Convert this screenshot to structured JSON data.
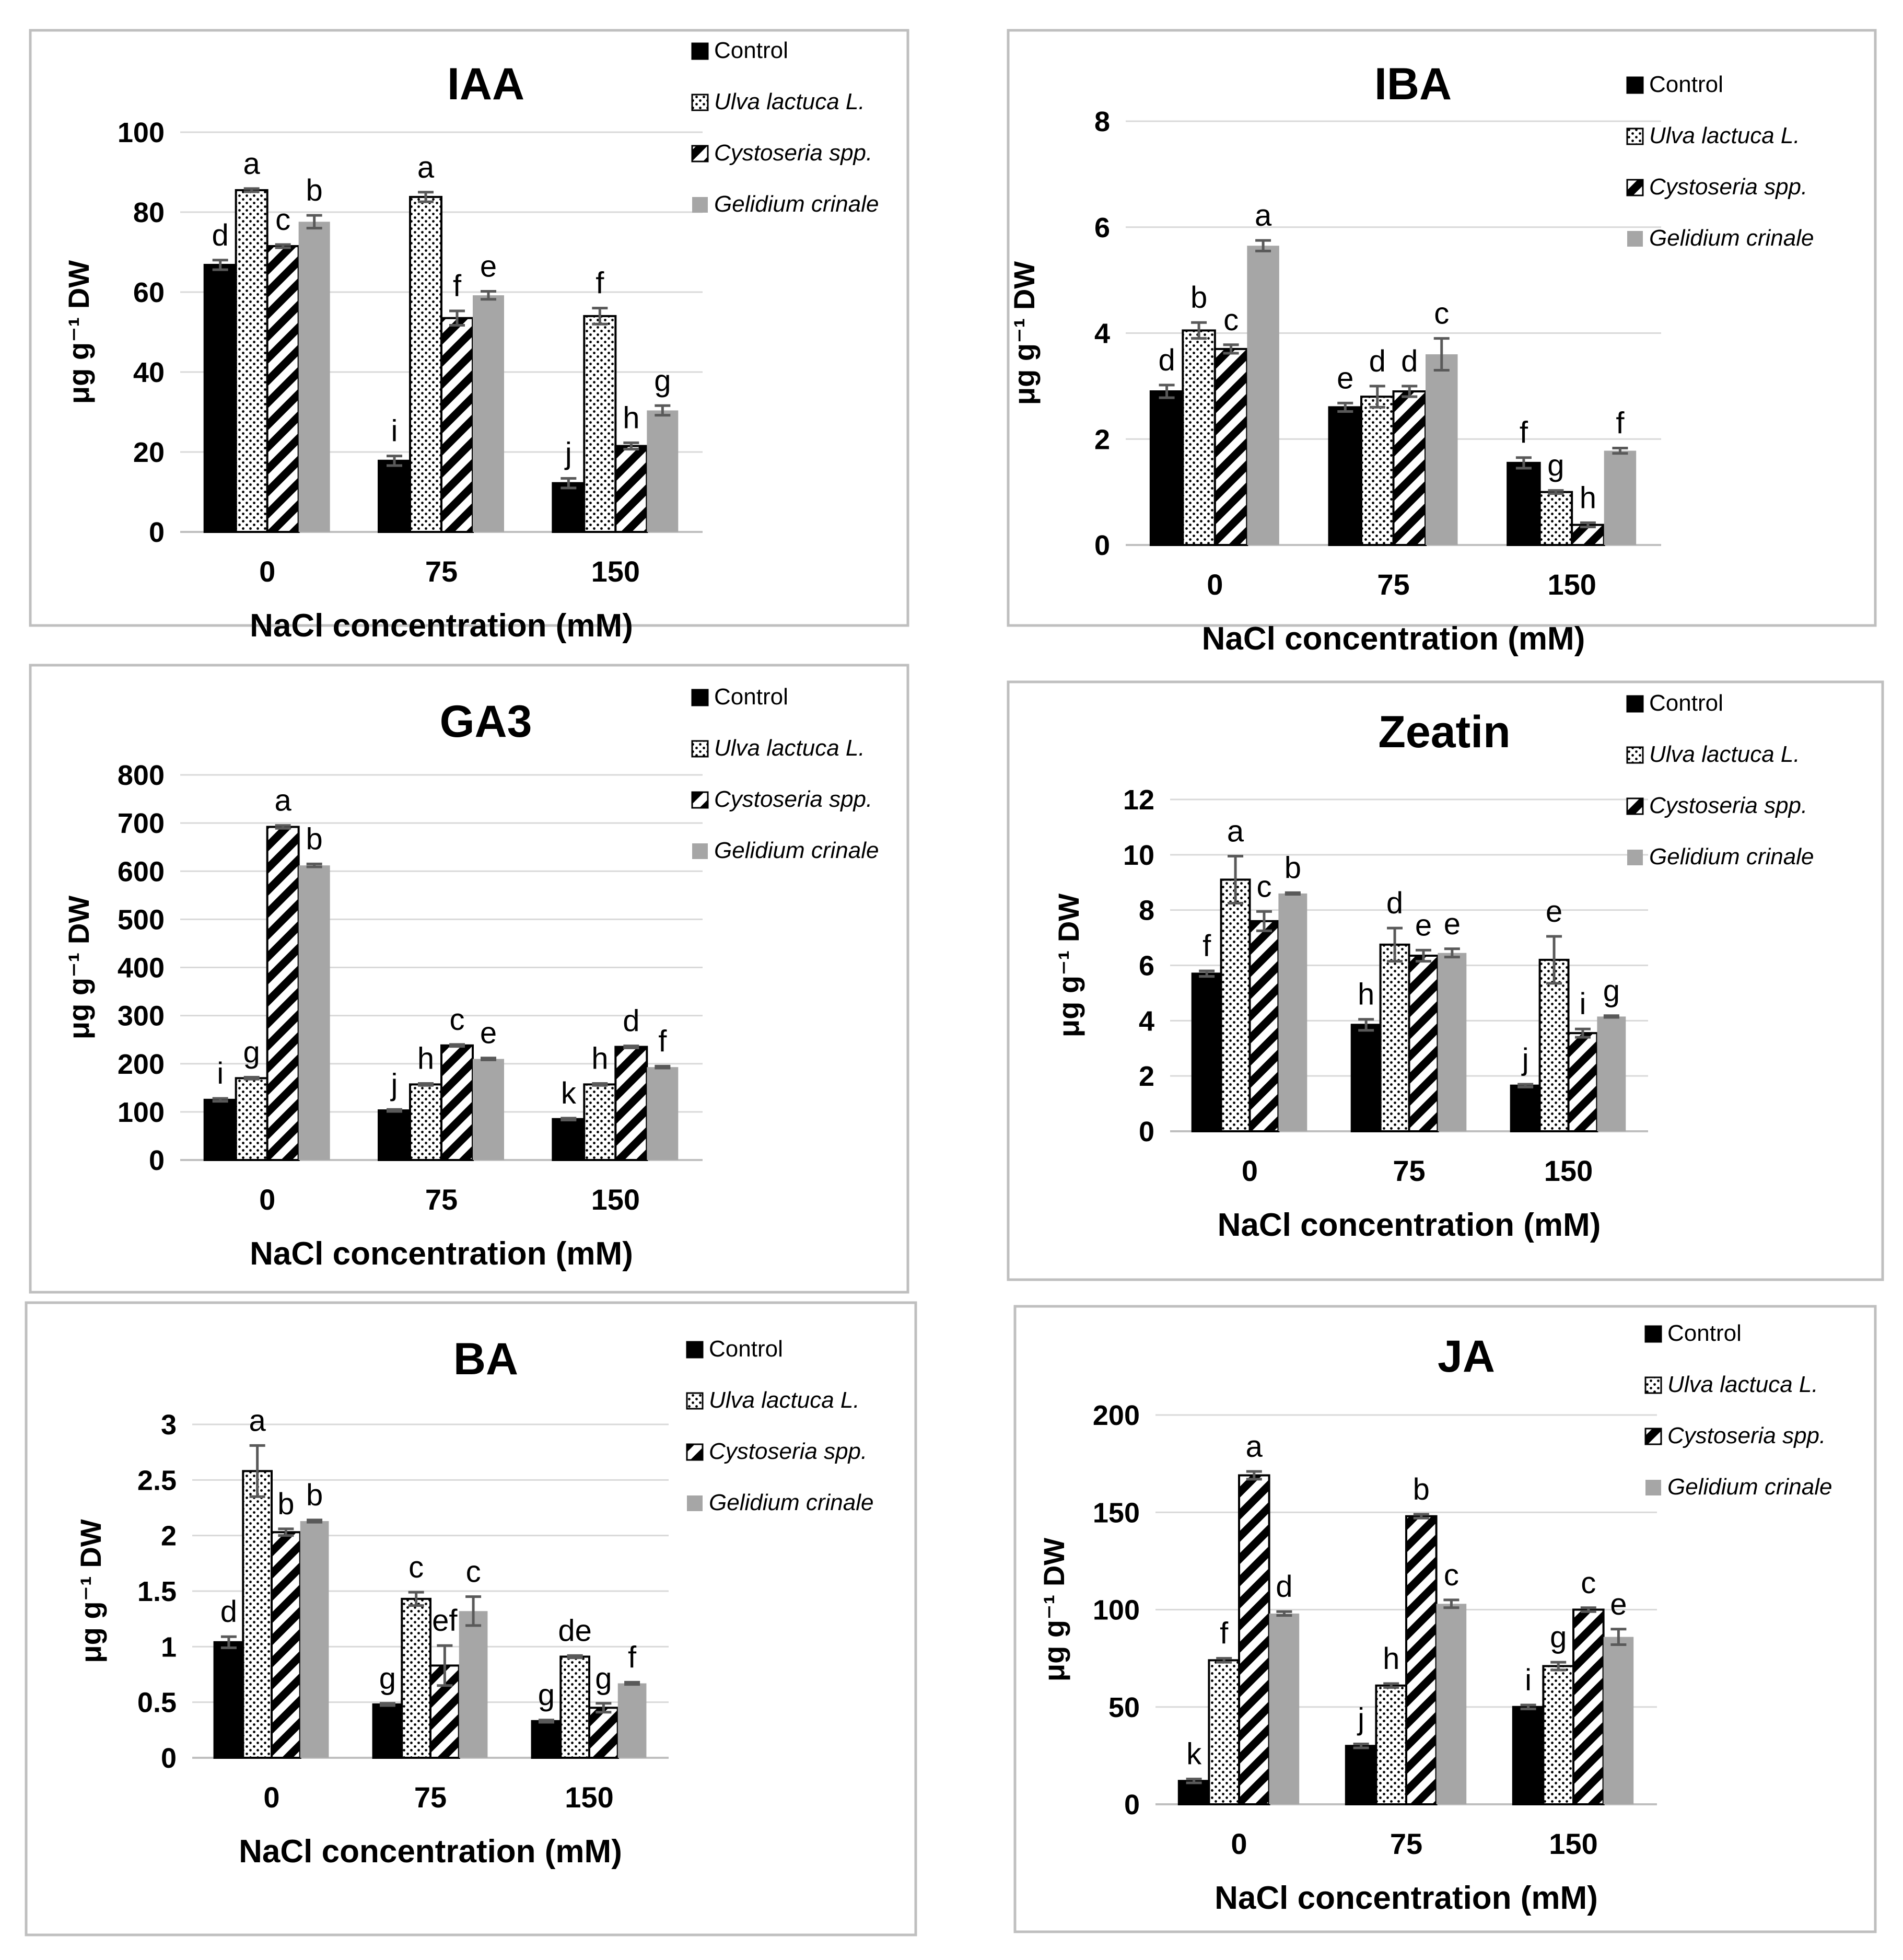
{
  "colors": {
    "control": "#000000",
    "gelidium": "#a6a6a6",
    "grid": "#d9d9d9",
    "frame": "#bfbfbf",
    "error_bar": "#595959",
    "text": "#000000"
  },
  "chart_data": [
    {
      "type": "bar",
      "title": "IAA",
      "xlabel": "NaCl concentration (mM)",
      "ylabel": "μg g⁻¹ DW",
      "categories": [
        "0",
        "75",
        "150"
      ],
      "ylim": [
        0,
        100
      ],
      "yticks": [
        "0",
        "20",
        "40",
        "60",
        "80",
        "100"
      ],
      "series": [
        {
          "name": "Control",
          "pattern": "solid",
          "values": [
            66.8,
            17.8,
            12.2
          ],
          "errors": [
            1.2,
            1.2,
            1.2
          ],
          "letters": [
            "d",
            "i",
            "j"
          ]
        },
        {
          "name": "Ulva lactuca L.",
          "pattern": "dots",
          "values": [
            85.5,
            83.8,
            54.0
          ],
          "errors": [
            0.4,
            1.2,
            2.0
          ],
          "letters": [
            "a",
            "a",
            "f"
          ]
        },
        {
          "name": "Cystoseria spp.",
          "pattern": "stripes",
          "values": [
            71.5,
            53.5,
            21.5
          ],
          "errors": [
            0.4,
            1.8,
            0.8
          ],
          "letters": [
            "c",
            "f",
            "h"
          ]
        },
        {
          "name": "Gelidium crinale",
          "pattern": "gray",
          "values": [
            77.6,
            59.2,
            30.4
          ],
          "errors": [
            1.6,
            1.0,
            1.2
          ],
          "letters": [
            "b",
            "e",
            "g"
          ]
        }
      ]
    },
    {
      "type": "bar",
      "title": "IBA",
      "xlabel": "NaCl concentration (mM)",
      "ylabel": "μg g⁻¹ DW",
      "categories": [
        "0",
        "75",
        "150"
      ],
      "ylim": [
        0,
        8
      ],
      "yticks": [
        "0",
        "2",
        "4",
        "6",
        "8"
      ],
      "series": [
        {
          "name": "Control",
          "pattern": "solid",
          "values": [
            2.9,
            2.6,
            1.55
          ],
          "errors": [
            0.12,
            0.08,
            0.1
          ],
          "letters": [
            "d",
            "e",
            "f"
          ]
        },
        {
          "name": "Ulva lactuca L.",
          "pattern": "dots",
          "values": [
            4.05,
            2.8,
            1.0
          ],
          "errors": [
            0.15,
            0.2,
            0.03
          ],
          "letters": [
            "b",
            "d",
            "g"
          ]
        },
        {
          "name": "Cystoseria spp.",
          "pattern": "stripes",
          "values": [
            3.7,
            2.9,
            0.38
          ],
          "errors": [
            0.08,
            0.1,
            0.04
          ],
          "letters": [
            "c",
            "d",
            "h"
          ]
        },
        {
          "name": "Gelidium crinale",
          "pattern": "gray",
          "values": [
            5.65,
            3.6,
            1.78
          ],
          "errors": [
            0.1,
            0.3,
            0.05
          ],
          "letters": [
            "a",
            "c",
            "f"
          ]
        }
      ]
    },
    {
      "type": "bar",
      "title": "GA3",
      "xlabel": "NaCl concentration (mM)",
      "ylabel": "μg g⁻¹ DW",
      "categories": [
        "0",
        "75",
        "150"
      ],
      "ylim": [
        0,
        800
      ],
      "yticks": [
        "0",
        "100",
        "200",
        "300",
        "400",
        "500",
        "600",
        "700",
        "800"
      ],
      "series": [
        {
          "name": "Control",
          "pattern": "solid",
          "values": [
            125,
            103,
            85
          ],
          "errors": [
            3,
            2,
            2
          ],
          "letters": [
            "i",
            "j",
            "k"
          ]
        },
        {
          "name": "Ulva lactuca L.",
          "pattern": "dots",
          "values": [
            170,
            157,
            157
          ],
          "errors": [
            2,
            2,
            2
          ],
          "letters": [
            "g",
            "h",
            "h"
          ]
        },
        {
          "name": "Cystoseria spp.",
          "pattern": "stripes",
          "values": [
            692,
            238,
            235
          ],
          "errors": [
            3,
            2,
            2
          ],
          "letters": [
            "a",
            "c",
            "d"
          ]
        },
        {
          "name": "Gelidium crinale",
          "pattern": "gray",
          "values": [
            612,
            210,
            193
          ],
          "errors": [
            3,
            2,
            2
          ],
          "letters": [
            "b",
            "e",
            "f"
          ]
        }
      ]
    },
    {
      "type": "bar",
      "title": "Zeatin",
      "xlabel": "NaCl concentration (mM)",
      "ylabel": "μg g⁻¹ DW",
      "categories": [
        "0",
        "75",
        "150"
      ],
      "ylim": [
        0,
        12
      ],
      "yticks": [
        "0",
        "2",
        "4",
        "6",
        "8",
        "10",
        "12"
      ],
      "series": [
        {
          "name": "Control",
          "pattern": "solid",
          "values": [
            5.7,
            3.85,
            1.65
          ],
          "errors": [
            0.1,
            0.2,
            0.05
          ],
          "letters": [
            "f",
            "h",
            "j"
          ]
        },
        {
          "name": "Ulva lactuca L.",
          "pattern": "dots",
          "values": [
            9.1,
            6.75,
            6.2
          ],
          "errors": [
            0.85,
            0.6,
            0.85
          ],
          "letters": [
            "a",
            "d",
            "e"
          ]
        },
        {
          "name": "Cystoseria spp.",
          "pattern": "stripes",
          "values": [
            7.6,
            6.35,
            3.55
          ],
          "errors": [
            0.35,
            0.2,
            0.15
          ],
          "letters": [
            "c",
            "e",
            "i"
          ]
        },
        {
          "name": "Gelidium crinale",
          "pattern": "gray",
          "values": [
            8.6,
            6.45,
            4.15
          ],
          "errors": [
            0.03,
            0.15,
            0.03
          ],
          "letters": [
            "b",
            "e",
            "g"
          ]
        }
      ]
    },
    {
      "type": "bar",
      "title": "BA",
      "xlabel": "NaCl concentration (mM)",
      "ylabel": "μg g⁻¹ DW",
      "categories": [
        "0",
        "75",
        "150"
      ],
      "ylim": [
        0,
        3
      ],
      "yticks": [
        "0",
        "0.5",
        "1",
        "1.5",
        "2",
        "2.5",
        "3"
      ],
      "series": [
        {
          "name": "Control",
          "pattern": "solid",
          "values": [
            1.04,
            0.48,
            0.33
          ],
          "errors": [
            0.05,
            0.01,
            0.01
          ],
          "letters": [
            "d",
            "g",
            "g"
          ]
        },
        {
          "name": "Ulva lactuca L.",
          "pattern": "dots",
          "values": [
            2.58,
            1.43,
            0.91
          ],
          "errors": [
            0.23,
            0.06,
            0.01
          ],
          "letters": [
            "a",
            "c",
            "de"
          ]
        },
        {
          "name": "Cystoseria spp.",
          "pattern": "stripes",
          "values": [
            2.03,
            0.83,
            0.45
          ],
          "errors": [
            0.03,
            0.18,
            0.04
          ],
          "letters": [
            "b",
            "ef",
            "g"
          ]
        },
        {
          "name": "Gelidium crinale",
          "pattern": "gray",
          "values": [
            2.13,
            1.32,
            0.67
          ],
          "errors": [
            0.01,
            0.13,
            0.01
          ],
          "letters": [
            "b",
            "c",
            "f"
          ]
        }
      ]
    },
    {
      "type": "bar",
      "title": "JA",
      "xlabel": "NaCl concentration (mM)",
      "ylabel": "μg g⁻¹ DW",
      "categories": [
        "0",
        "75",
        "150"
      ],
      "ylim": [
        0,
        200
      ],
      "yticks": [
        "0",
        "50",
        "100",
        "150",
        "200"
      ],
      "series": [
        {
          "name": "Control",
          "pattern": "solid",
          "values": [
            12,
            30,
            50
          ],
          "errors": [
            1,
            1,
            1
          ],
          "letters": [
            "k",
            "j",
            "i"
          ]
        },
        {
          "name": "Ulva lactuca L.",
          "pattern": "dots",
          "values": [
            74,
            61,
            71
          ],
          "errors": [
            1,
            1,
            2
          ],
          "letters": [
            "f",
            "h",
            "g"
          ]
        },
        {
          "name": "Cystoseria spp.",
          "pattern": "stripes",
          "values": [
            169,
            148,
            100
          ],
          "errors": [
            2,
            1,
            1
          ],
          "letters": [
            "a",
            "b",
            "c"
          ]
        },
        {
          "name": "Gelidium crinale",
          "pattern": "gray",
          "values": [
            98,
            103,
            86
          ],
          "errors": [
            1,
            2,
            4
          ],
          "letters": [
            "d",
            "c",
            "e"
          ]
        }
      ]
    }
  ]
}
